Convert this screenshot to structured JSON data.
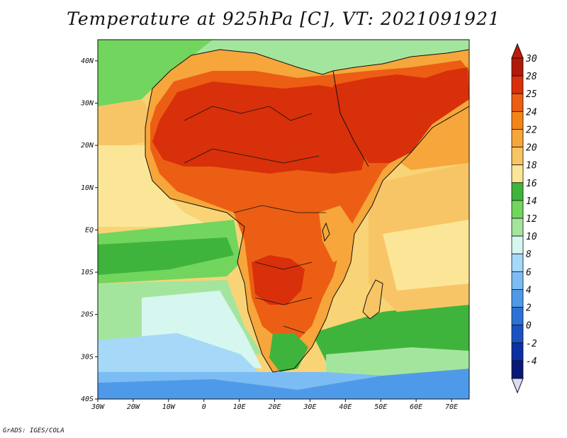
{
  "title": "Temperature at 925hPa [C], VT: 2021091921",
  "credit": "GrADS: IGES/COLA",
  "map": {
    "lat_labels": [
      "40N",
      "30N",
      "20N",
      "10N",
      "EQ",
      "10S",
      "20S",
      "30S",
      "40S"
    ],
    "lon_labels": [
      "30W",
      "20W",
      "10W",
      "0",
      "10E",
      "20E",
      "30E",
      "40E",
      "50E",
      "60E",
      "70E"
    ],
    "lon_range": [
      -30,
      75
    ],
    "lat_range": [
      -40,
      45
    ],
    "projection": "latlon"
  },
  "colorbar": {
    "labels": [
      "30",
      "28",
      "25",
      "24",
      "22",
      "20",
      "18",
      "16",
      "14",
      "12",
      "10",
      "8",
      "6",
      "4",
      "2",
      "0",
      "-2",
      "-4"
    ],
    "colors": [
      "#b01a06",
      "#d8300a",
      "#ec5e14",
      "#f48418",
      "#f6a63a",
      "#f8c566",
      "#fbe698",
      "#3fb43c",
      "#72d55e",
      "#a4e59e",
      "#d6f6f0",
      "#a6d8f8",
      "#7bbcf4",
      "#4f9ae8",
      "#2c72d6",
      "#1a52c2",
      "#0c30a4",
      "#081878"
    ],
    "max_color": "#c41906",
    "min_color": "#dedbf6"
  },
  "colors": {
    "ocean_warm": "#f8d476",
    "ocean_pale": "#fbe698",
    "ocean_green": "#72d55e",
    "ocean_mid_green": "#3fb43c",
    "ocean_cool": "#a6d8f8",
    "ocean_cold": "#4f9ae8",
    "land_hot": "#d8300a",
    "land_warm": "#ec5e14",
    "land_mild": "#f6a63a"
  }
}
